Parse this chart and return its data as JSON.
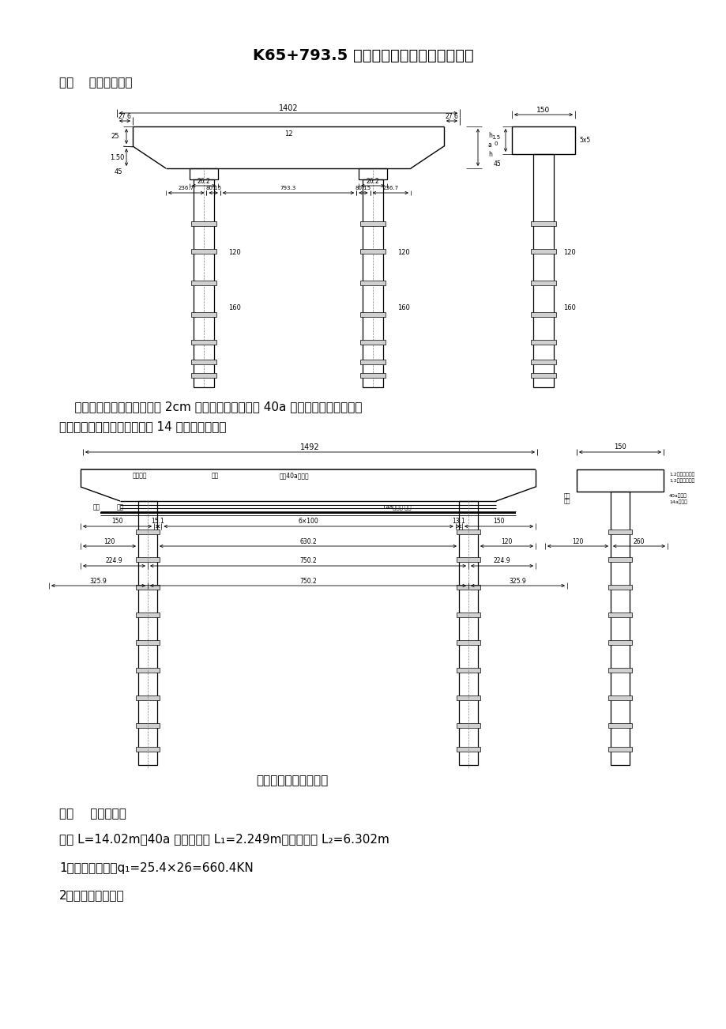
{
  "title": "K65+793.5 分离式立交盖梁支架施工方案",
  "section1": "一、    盖梁结构特点",
  "para_line1": "    盖梁施工采用在墩柱上设置 2cm 厚钉抱箍，上面采用 40a 工字颉作纵梁，携设施",
  "para_line2": "工平台的方式，纵梁上面铺设 14 工字颉作横梁。",
  "fig_caption": "盖梁模板、支架布置图",
  "section2": "二、    结构计算：",
  "text1": "总长 L=14.02m，40a 工字颉悬臂 L₁=2.249m，墩柱净距 L₂=6.302m",
  "text2": "1、盖梁砖重量：q₁=25.4×26=660.4KN",
  "text3": "2、模板、支架自重",
  "bg": "#ffffff"
}
